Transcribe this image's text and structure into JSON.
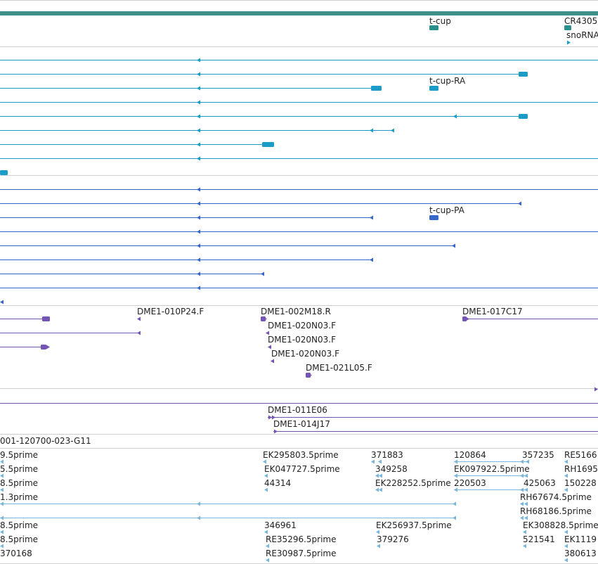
{
  "colors": {
    "gene": "#2a8f8a",
    "transcript": "#1a9cc6",
    "protein": "#3566c8",
    "clone": "#7455b5",
    "est": "#78b6e0",
    "divider": "#cfcfcf",
    "top_bar": "#3f8f8a"
  },
  "tracks": [
    {
      "name": "gene-track",
      "labels": [
        {
          "text": "t-cup"
        },
        {
          "text": "CR4305"
        },
        {
          "text": "snoRNA"
        }
      ]
    },
    {
      "name": "transcript-track",
      "labels": [
        {
          "text": "t-cup-RA"
        }
      ]
    },
    {
      "name": "protein-track",
      "labels": [
        {
          "text": "t-cup-PA"
        }
      ]
    },
    {
      "name": "clone-end-track",
      "labels": [
        {
          "text": "DME1-010P24.F"
        },
        {
          "text": "DME1-002M18.R"
        },
        {
          "text": "DME1-017C17"
        },
        {
          "text": "DME1-020N03.F"
        },
        {
          "text": "DME1-020N03.F"
        },
        {
          "text": "DME1-020N03.F"
        },
        {
          "text": "DME1-021L05.F"
        }
      ]
    },
    {
      "name": "clone-track",
      "labels": [
        {
          "text": "DME1-011E06"
        },
        {
          "text": "DME1-014J17"
        }
      ]
    },
    {
      "name": "est-track",
      "labels": [
        {
          "text": "001-120700-023-G11"
        },
        {
          "text": "9.5prime"
        },
        {
          "text": "EK295803.5prime"
        },
        {
          "text": "371883"
        },
        {
          "text": "120864"
        },
        {
          "text": "357235"
        },
        {
          "text": "RE5166"
        },
        {
          "text": "5.5prime"
        },
        {
          "text": "EK047727.5prime"
        },
        {
          "text": "349258"
        },
        {
          "text": "EK097922.5prime"
        },
        {
          "text": "RH1695"
        },
        {
          "text": "8.5prime"
        },
        {
          "text": "44314"
        },
        {
          "text": "EK228252.5prime"
        },
        {
          "text": "220503"
        },
        {
          "text": "425063"
        },
        {
          "text": "150228"
        },
        {
          "text": "1.3prime"
        },
        {
          "text": "RH67674.5prime"
        },
        {
          "text": "RH68186.5prime"
        },
        {
          "text": "8.5prime"
        },
        {
          "text": "346961"
        },
        {
          "text": "EK256937.5prime"
        },
        {
          "text": "EK308828.5prime"
        },
        {
          "text": "8.5prime"
        },
        {
          "text": "RE35296.5prime"
        },
        {
          "text": "379276"
        },
        {
          "text": "521541"
        },
        {
          "text": "EK1119"
        },
        {
          "text": "370168"
        },
        {
          "text": "RE30987.5prime"
        },
        {
          "text": "380613"
        }
      ]
    }
  ]
}
